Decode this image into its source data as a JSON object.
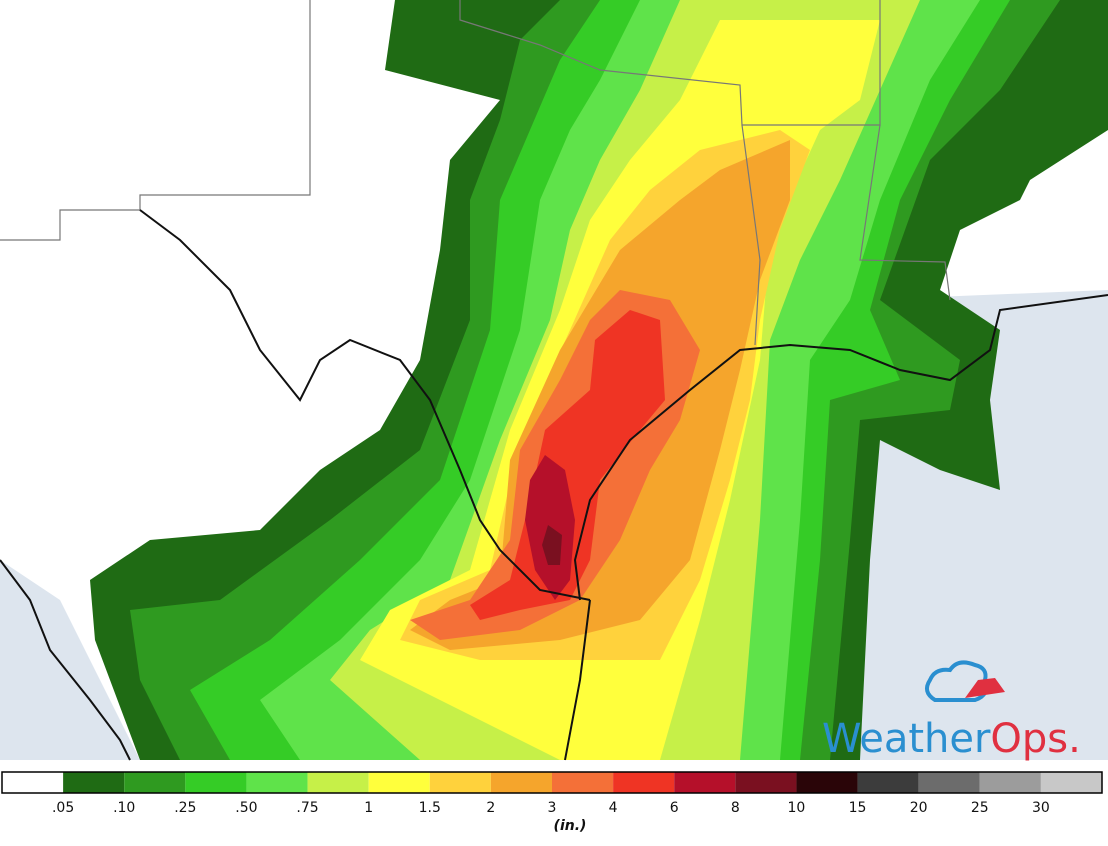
{
  "legend": {
    "labels": [
      ".05",
      ".10",
      ".25",
      ".50",
      ".75",
      "1",
      "1.5",
      "2",
      "3",
      "4",
      "6",
      "8",
      "10",
      "15",
      "20",
      "25",
      "30"
    ],
    "colors": [
      "#ffffff",
      "#1f6b14",
      "#2f9a20",
      "#35cc26",
      "#5fe34a",
      "#c6f048",
      "#ffff3c",
      "#ffd23c",
      "#f5a52c",
      "#f47038",
      "#ef3424",
      "#b5102a",
      "#7a1020",
      "#2a0508",
      "#3c3c3c",
      "#6c6c6c",
      "#9c9c9c",
      "#c8c8c8"
    ],
    "unit": "(in.)"
  },
  "logo": {
    "word": "Weather",
    "brand": "Ops."
  }
}
